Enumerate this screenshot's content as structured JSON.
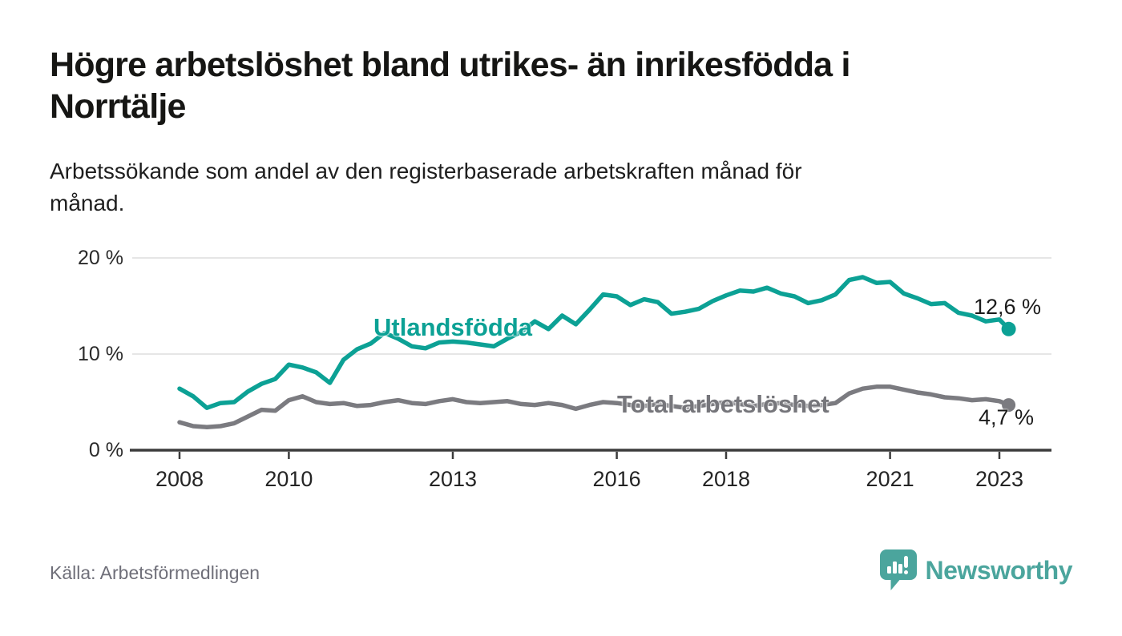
{
  "chart_data": {
    "type": "line",
    "title": "Högre arbetslöshet bland utrikes- än inrikesfödda i\nNorrtälje",
    "subtitle": "Arbetssökande som andel av den registerbaserade arbetskraften månad för\nmånad.",
    "unit": "%",
    "grid": "horizontal",
    "xlim": [
      2007.1,
      2024.0
    ],
    "ylim": [
      0,
      21.5
    ],
    "x_ticks": [
      {
        "year": 2008,
        "label": "2008"
      },
      {
        "year": 2010,
        "label": "2010"
      },
      {
        "year": 2013,
        "label": "2013"
      },
      {
        "year": 2016,
        "label": "2016"
      },
      {
        "year": 2018,
        "label": "2018"
      },
      {
        "year": 2021,
        "label": "2021"
      },
      {
        "year": 2023,
        "label": "2023"
      }
    ],
    "y_ticks": [
      {
        "value": 0,
        "label": "0 %"
      },
      {
        "value": 10,
        "label": "10 %"
      },
      {
        "value": 20,
        "label": "20 %"
      }
    ],
    "x": [
      2008.0,
      2008.25,
      2008.5,
      2008.75,
      2009.0,
      2009.25,
      2009.5,
      2009.75,
      2010.0,
      2010.25,
      2010.5,
      2010.75,
      2011.0,
      2011.25,
      2011.5,
      2011.75,
      2012.0,
      2012.25,
      2012.5,
      2012.75,
      2013.0,
      2013.25,
      2013.5,
      2013.75,
      2014.0,
      2014.25,
      2014.5,
      2014.75,
      2015.0,
      2015.25,
      2015.5,
      2015.75,
      2016.0,
      2016.25,
      2016.5,
      2016.75,
      2017.0,
      2017.25,
      2017.5,
      2017.75,
      2018.0,
      2018.25,
      2018.5,
      2018.75,
      2019.0,
      2019.25,
      2019.5,
      2019.75,
      2020.0,
      2020.25,
      2020.5,
      2020.75,
      2021.0,
      2021.25,
      2021.5,
      2021.75,
      2022.0,
      2022.25,
      2022.5,
      2022.75,
      2023.0,
      2023.17
    ],
    "series": [
      {
        "name": "Utlandsfödda",
        "color": "#0CA195",
        "end_label": "12,6 %",
        "end_value": 12.6,
        "values": [
          6.4,
          5.6,
          4.4,
          4.9,
          5.0,
          6.1,
          6.9,
          7.4,
          8.9,
          8.6,
          8.1,
          7.0,
          9.4,
          10.5,
          11.1,
          12.2,
          11.6,
          10.8,
          10.6,
          11.2,
          11.3,
          11.2,
          11.0,
          10.8,
          11.6,
          12.3,
          13.4,
          12.6,
          14.0,
          13.1,
          14.6,
          16.2,
          16.0,
          15.1,
          15.7,
          15.4,
          14.2,
          14.4,
          14.7,
          15.5,
          16.1,
          16.6,
          16.5,
          16.9,
          16.3,
          16.0,
          15.3,
          15.6,
          16.2,
          17.7,
          18.0,
          17.4,
          17.5,
          16.3,
          15.8,
          15.2,
          15.3,
          14.3,
          14.0,
          13.4,
          13.6,
          12.6
        ]
      },
      {
        "name": "Total arbetslöshet",
        "color": "#7B7B80",
        "end_label": "4,7 %",
        "end_value": 4.7,
        "values": [
          2.9,
          2.5,
          2.4,
          2.5,
          2.8,
          3.5,
          4.2,
          4.1,
          5.2,
          5.6,
          5.0,
          4.8,
          4.9,
          4.6,
          4.7,
          5.0,
          5.2,
          4.9,
          4.8,
          5.1,
          5.3,
          5.0,
          4.9,
          5.0,
          5.1,
          4.8,
          4.7,
          4.9,
          4.7,
          4.3,
          4.7,
          5.0,
          4.9,
          4.7,
          4.6,
          4.8,
          4.6,
          4.4,
          4.6,
          4.8,
          5.0,
          4.8,
          4.6,
          4.8,
          4.9,
          4.7,
          4.6,
          4.7,
          4.9,
          5.9,
          6.4,
          6.6,
          6.6,
          6.3,
          6.0,
          5.8,
          5.5,
          5.4,
          5.2,
          5.3,
          5.1,
          4.7
        ]
      }
    ]
  },
  "colors": {
    "grid": "#dddddd",
    "axis": "#3c3c3c",
    "logo": "#4BA59D"
  },
  "footer": {
    "source_label": "Källa: Arbetsförmedlingen",
    "brand": "Newsworthy"
  }
}
